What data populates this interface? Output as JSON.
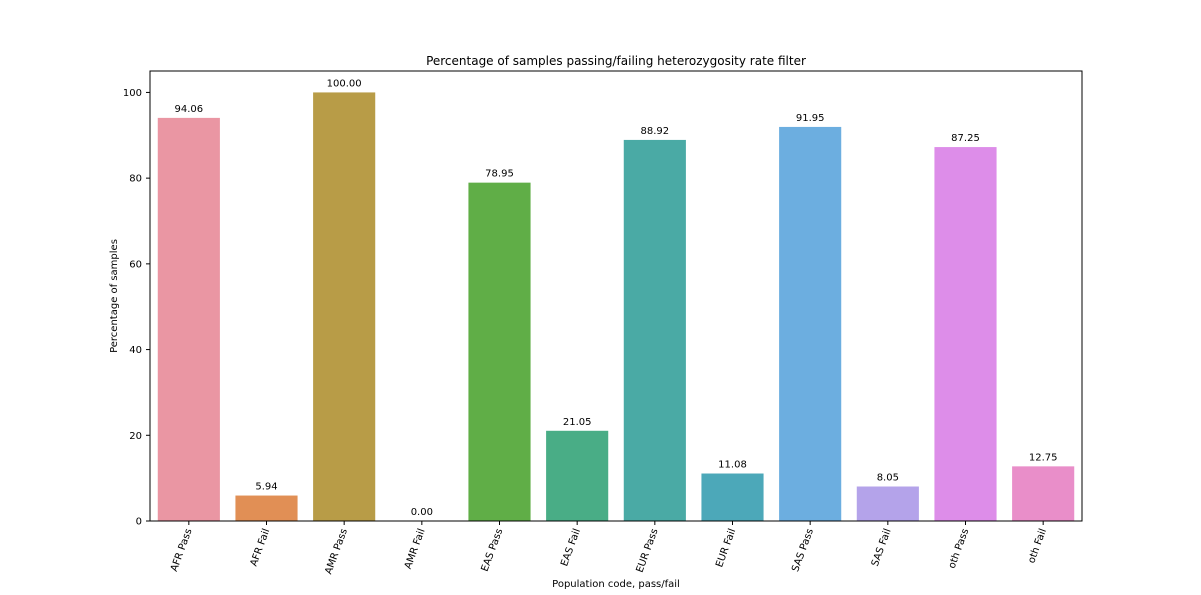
{
  "chart_data": {
    "type": "bar",
    "title": "Percentage of samples passing/failing heterozygosity rate filter",
    "xlabel": "Population code, pass/fail",
    "ylabel": "Percentage of samples",
    "ylim": [
      0,
      105
    ],
    "yticks": [
      0,
      20,
      40,
      60,
      80,
      100
    ],
    "grid": false,
    "legend": "none",
    "categories": [
      "AFR Pass",
      "AFR Fail",
      "AMR Pass",
      "AMR Fail",
      "EAS Pass",
      "EAS Fail",
      "EUR Pass",
      "EUR Fail",
      "SAS Pass",
      "SAS Fail",
      "oth Pass",
      "oth Fail"
    ],
    "values": [
      94.06,
      5.94,
      100.0,
      0.0,
      78.95,
      21.05,
      88.92,
      11.08,
      91.95,
      8.05,
      87.25,
      12.75
    ],
    "value_labels": [
      "94.06",
      "5.94",
      "100.00",
      "0.00",
      "78.95",
      "21.05",
      "88.92",
      "11.08",
      "91.95",
      "8.05",
      "87.25",
      "12.75"
    ],
    "colors": [
      "#ea96a3",
      "#e18f55",
      "#b89c47",
      "#9aaa40",
      "#60ae47",
      "#49ad86",
      "#4aaaa5",
      "#4ca8b9",
      "#6caee0",
      "#b4a3ea",
      "#dd8de9",
      "#e98ec9"
    ]
  }
}
